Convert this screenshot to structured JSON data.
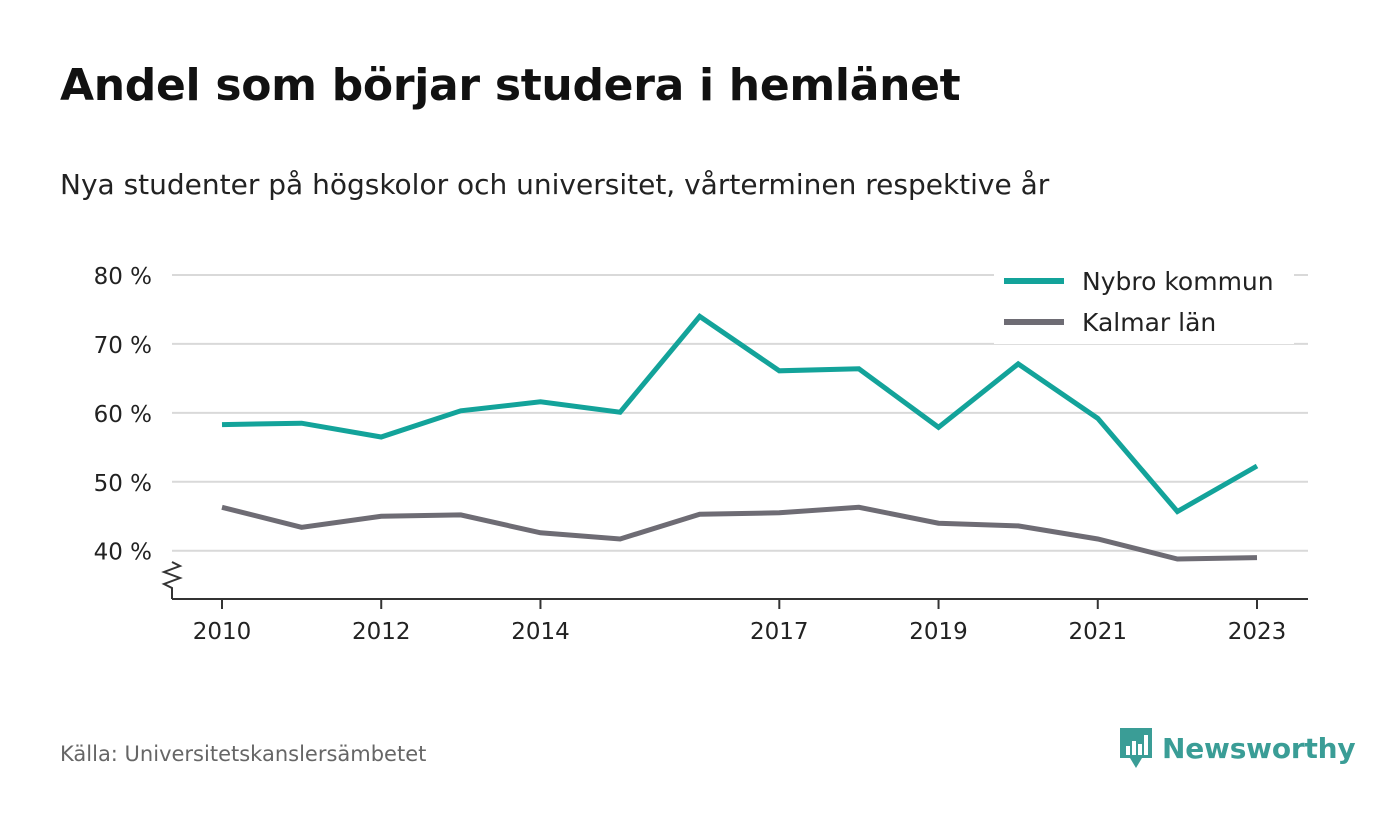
{
  "title": "Andel som börjar studera i hemlänet",
  "subtitle": "Nya studenter på högskolor och universitet, vårterminen respektive år",
  "source": "Källa: Universitetskanslersämbetet",
  "brand": "Newsworthy",
  "colors": {
    "nybro": "#13a39a",
    "kalmar": "#6e6c74",
    "grid": "#d9d9d9",
    "axis": "#333333",
    "brand": "#3a9d96"
  },
  "chart_data": {
    "type": "line",
    "x": [
      2010,
      2011,
      2012,
      2013,
      2014,
      2015,
      2016,
      2017,
      2018,
      2019,
      2020,
      2021,
      2022,
      2023
    ],
    "x_tick_labels": [
      "2010",
      "2012",
      "2014",
      "2017",
      "2019",
      "2021",
      "2023"
    ],
    "y_tick_labels": [
      "80 %",
      "70 %",
      "60 %",
      "50 %",
      "40 %"
    ],
    "y_ticks": [
      80,
      70,
      60,
      50,
      40
    ],
    "ylim": [
      33,
      80
    ],
    "y_axis_break": true,
    "grid": true,
    "legend_position": "top-right",
    "series": [
      {
        "name": "Nybro kommun",
        "color": "#13a39a",
        "values": [
          58.3,
          58.5,
          56.5,
          60.3,
          61.6,
          60.1,
          74.0,
          66.1,
          66.4,
          57.9,
          67.1,
          59.2,
          45.7,
          52.3
        ]
      },
      {
        "name": "Kalmar län",
        "color": "#6e6c74",
        "values": [
          46.3,
          43.4,
          45.0,
          45.2,
          42.6,
          41.7,
          45.3,
          45.5,
          46.3,
          44.0,
          43.6,
          41.7,
          38.8,
          39.0
        ]
      }
    ]
  }
}
